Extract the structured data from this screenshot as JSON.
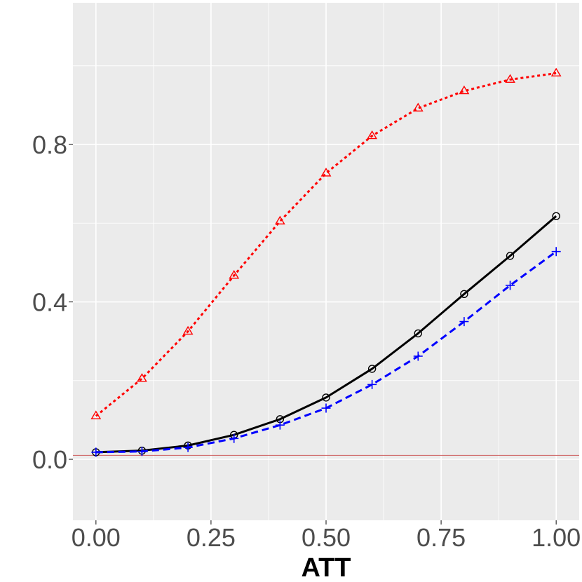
{
  "chart_data": {
    "type": "line",
    "xlabel": "ATT",
    "ylabel": "",
    "xlim": [
      -0.05,
      1.05
    ],
    "ylim": [
      -0.155,
      1.16
    ],
    "x_ticks": [
      0.0,
      0.25,
      0.5,
      0.75,
      1.0
    ],
    "x_tick_labels": [
      "0.00",
      "0.25",
      "0.50",
      "0.75",
      "1.00"
    ],
    "y_ticks": [
      0.0,
      0.4,
      0.8
    ],
    "y_tick_labels": [
      "0.0",
      "0.4",
      "0.8"
    ],
    "grid": true,
    "background_color": "#EBEBEB",
    "reference_line": {
      "y": 0.01,
      "color": "#CD5C5C"
    },
    "x": [
      0.0,
      0.1,
      0.2,
      0.3,
      0.4,
      0.5,
      0.6,
      0.7,
      0.8,
      0.9,
      1.0
    ],
    "series": [
      {
        "color": "#FF0000",
        "line_style": "dotted",
        "marker": "triangle",
        "values": [
          0.11,
          0.205,
          0.325,
          0.467,
          0.605,
          0.727,
          0.822,
          0.892,
          0.936,
          0.965,
          0.981
        ]
      },
      {
        "color": "#000000",
        "line_style": "solid",
        "marker": "circle",
        "values": [
          0.018,
          0.022,
          0.035,
          0.062,
          0.102,
          0.157,
          0.23,
          0.32,
          0.42,
          0.517,
          0.618
        ]
      },
      {
        "color": "#0000FF",
        "line_style": "dashed",
        "marker": "plus",
        "values": [
          0.018,
          0.02,
          0.03,
          0.053,
          0.087,
          0.13,
          0.19,
          0.262,
          0.35,
          0.442,
          0.528
        ]
      }
    ]
  }
}
